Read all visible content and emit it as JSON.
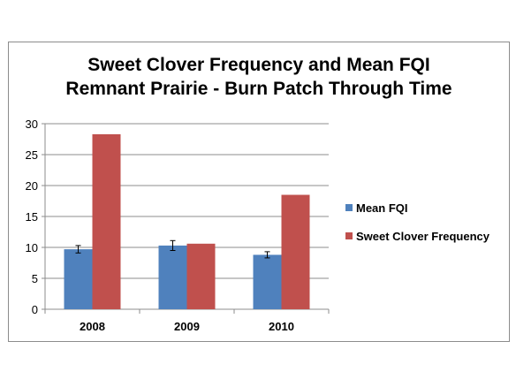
{
  "chart_data": {
    "type": "bar",
    "title": [
      "Sweet Clover Frequency and Mean FQI",
      "Remnant Prairie - Burn Patch Through Time"
    ],
    "categories": [
      "2008",
      "2009",
      "2010"
    ],
    "series": [
      {
        "name": "Mean FQI",
        "values": [
          9.7,
          10.3,
          8.8
        ],
        "error": [
          0.6,
          0.8,
          0.5
        ],
        "color": "#4f81bd"
      },
      {
        "name": "Sweet Clover Frequency",
        "values": [
          28.3,
          10.6,
          18.5
        ],
        "color": "#c0504d"
      }
    ],
    "ylim": [
      0,
      30
    ],
    "yticks": [
      0,
      5,
      10,
      15,
      20,
      25,
      30
    ],
    "grid": true,
    "legend": "right",
    "xlabel": "",
    "ylabel": ""
  }
}
